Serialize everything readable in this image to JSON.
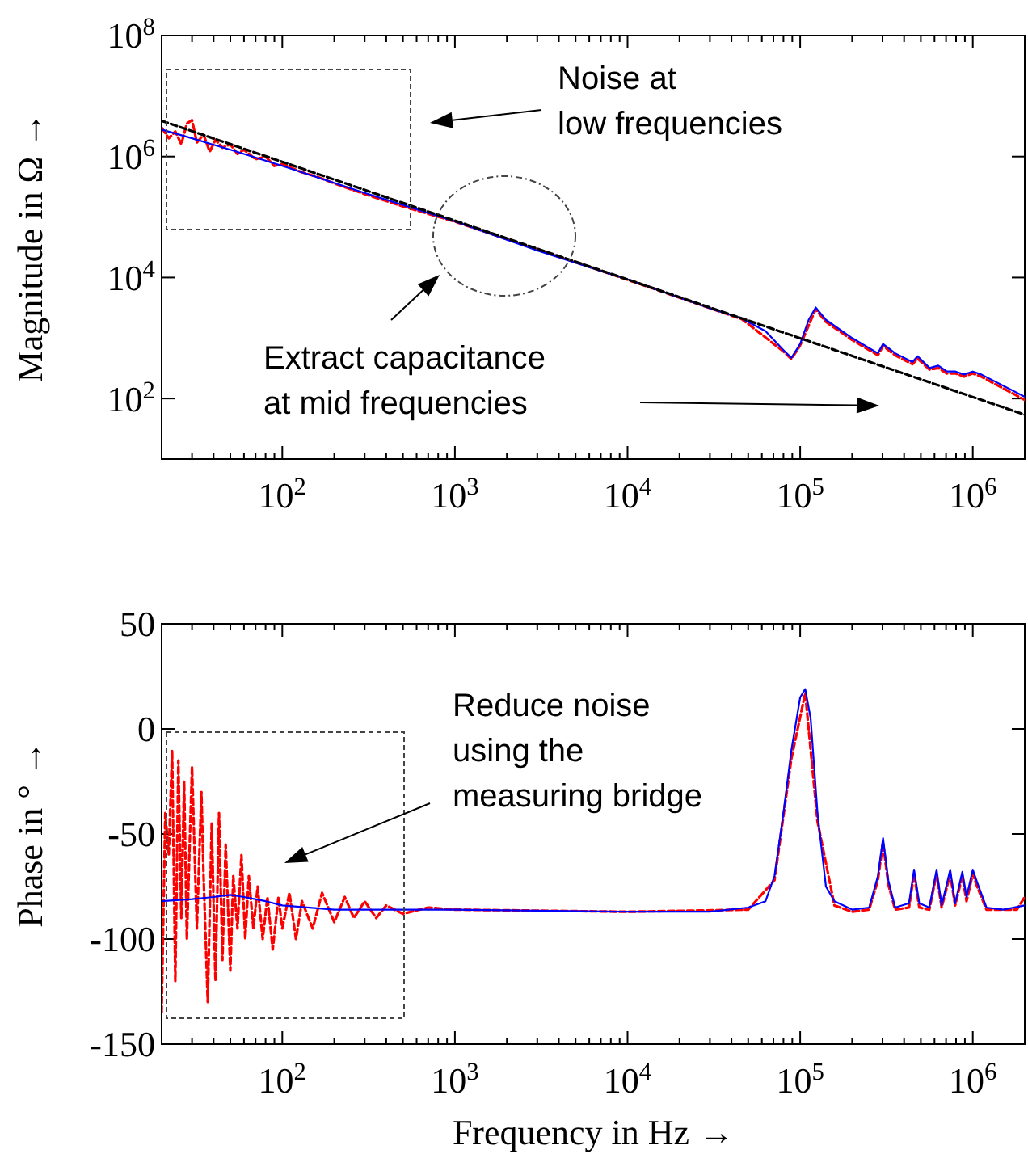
{
  "chart_data": [
    {
      "type": "line",
      "log": "xy",
      "ylabel": "Magnitude in Ω →",
      "xlim": [
        20,
        2000000
      ],
      "ylim": [
        10,
        100000000
      ],
      "xticks": [
        {
          "value": 100,
          "label": "10$^{2}$"
        },
        {
          "value": 1000,
          "label": "10$^{3}$"
        },
        {
          "value": 10000,
          "label": "10$^{4}$"
        },
        {
          "value": 100000,
          "label": "10$^{5}$"
        },
        {
          "value": 1000000,
          "label": "10$^{6}$"
        }
      ],
      "yticks": [
        {
          "value": 100,
          "label": "10$^{2}$"
        },
        {
          "value": 10000,
          "label": "10$^{4}$"
        },
        {
          "value": 1000000,
          "label": "10$^{6}$"
        },
        {
          "value": 100000000,
          "label": "10$^{8}$"
        }
      ],
      "annotations": [
        "Noise at\nlow frequencies",
        "Extract capacitance\nat mid frequencies"
      ],
      "series": [
        {
          "color": "#ff0000",
          "line_style": "dashed",
          "x": [
            20,
            22,
            24,
            26,
            28,
            30,
            32,
            35,
            38,
            41,
            45,
            50,
            55,
            60,
            70,
            80,
            90,
            100,
            130,
            160,
            200,
            300,
            500,
            1000,
            10000,
            46000,
            80000,
            89000,
            100000,
            123000,
            141000,
            200000,
            282000,
            302000,
            355000,
            447000,
            479000,
            562000,
            631000,
            708000,
            794000,
            891000,
            1000000,
            1120000,
            2000000
          ],
          "values": [
            3000000,
            2000000,
            2600000,
            1600000,
            3500000,
            4000000,
            1700000,
            2300000,
            1200000,
            1900000,
            1400000,
            1600000,
            1100000,
            1300000,
            900000,
            1000000,
            700000,
            750000,
            550000,
            460000,
            360000,
            240000,
            150000,
            84000,
            9200,
            2050,
            600,
            450,
            760,
            3000,
            1850,
            930,
            520,
            740,
            520,
            370,
            460,
            300,
            320,
            260,
            260,
            230,
            260,
            230,
            95
          ]
        },
        {
          "color": "#0000ff",
          "line_style": "solid",
          "x": [
            20,
            30,
            50,
            100,
            300,
            1000,
            3000,
            10000,
            30000,
            46000,
            63000,
            80000,
            89000,
            100000,
            112000,
            123000,
            141000,
            200000,
            282000,
            302000,
            355000,
            447000,
            479000,
            562000,
            631000,
            708000,
            794000,
            891000,
            1000000,
            1120000,
            2000000
          ],
          "values": [
            2800000,
            2000000,
            1300000,
            700000,
            250000,
            85000,
            28000,
            9300,
            3100,
            2100,
            1300,
            630,
            470,
            800,
            2000,
            3200,
            2000,
            1000,
            560,
            800,
            560,
            400,
            500,
            320,
            350,
            280,
            280,
            250,
            280,
            250,
            107
          ]
        },
        {
          "color": "#000000",
          "line_style": "dashed",
          "x": [
            20,
            2000000
          ],
          "values": [
            3900000,
            54
          ]
        }
      ]
    },
    {
      "type": "line",
      "log": "x",
      "ylabel": "Phase in ° →",
      "xlabel": "Frequency in Hz →",
      "xlim": [
        20,
        2000000
      ],
      "ylim": [
        -150,
        50
      ],
      "xticks": [
        {
          "value": 100,
          "label": "10$^{2}$"
        },
        {
          "value": 1000,
          "label": "10$^{3}$"
        },
        {
          "value": 10000,
          "label": "10$^{4}$"
        },
        {
          "value": 100000,
          "label": "10$^{5}$"
        },
        {
          "value": 1000000,
          "label": "10$^{6}$"
        }
      ],
      "yticks": [
        -150,
        -100,
        -50,
        0,
        50
      ],
      "annotations": [
        "Reduce noise\nusing the\nmeasuring bridge"
      ],
      "series": [
        {
          "color": "#ff0000",
          "line_style": "dashed",
          "x": [
            20,
            21,
            22,
            23,
            24,
            25,
            26,
            27,
            28,
            30,
            32,
            34,
            35,
            37,
            39,
            41,
            43,
            45,
            47,
            50,
            52,
            55,
            58,
            61,
            64,
            68,
            72,
            77,
            82,
            88,
            95,
            100,
            110,
            120,
            130,
            150,
            170,
            200,
            230,
            260,
            300,
            350,
            400,
            500,
            700,
            1000,
            10000,
            50000,
            71000,
            89000,
            107000,
            126000,
            158000,
            200000,
            251000,
            282000,
            302000,
            324000,
            355000,
            427000,
            457000,
            490000,
            560000,
            617000,
            660000,
            740000,
            790000,
            870000,
            920000,
            1000000,
            1060000,
            1200000,
            1800000,
            2000000
          ],
          "values": [
            -135,
            -40,
            -60,
            -10,
            -120,
            -15,
            -90,
            -25,
            -100,
            -18,
            -95,
            -30,
            -70,
            -130,
            -45,
            -120,
            -40,
            -110,
            -55,
            -115,
            -70,
            -95,
            -60,
            -100,
            -70,
            -95,
            -75,
            -100,
            -80,
            -105,
            -80,
            -95,
            -78,
            -100,
            -82,
            -95,
            -78,
            -92,
            -80,
            -90,
            -82,
            -90,
            -84,
            -88,
            -85,
            -86,
            -87,
            -86,
            -72,
            -14,
            17,
            -44,
            -84,
            -87,
            -86,
            -72,
            -54,
            -74,
            -86,
            -85,
            -69,
            -85,
            -86,
            -69,
            -85,
            -69,
            -84,
            -70,
            -82,
            -69,
            -75,
            -86,
            -86,
            -80
          ]
        },
        {
          "color": "#0000ff",
          "line_style": "solid",
          "x": [
            20,
            30,
            40,
            50,
            60,
            80,
            100,
            200,
            1000,
            10000,
            30000,
            50000,
            63000,
            71000,
            80000,
            89000,
            100000,
            107000,
            115000,
            126000,
            141000,
            158000,
            200000,
            251000,
            282000,
            302000,
            324000,
            355000,
            427000,
            457000,
            490000,
            560000,
            617000,
            660000,
            740000,
            790000,
            870000,
            920000,
            1000000,
            1060000,
            1200000,
            1500000,
            2000000
          ],
          "values": [
            -82,
            -81,
            -80,
            -79,
            -80,
            -82,
            -84,
            -86,
            -86,
            -87,
            -87,
            -85,
            -82,
            -70,
            -40,
            -10,
            15,
            19,
            5,
            -40,
            -75,
            -82,
            -86,
            -85,
            -70,
            -52,
            -72,
            -85,
            -83,
            -67,
            -83,
            -85,
            -67,
            -84,
            -67,
            -83,
            -68,
            -80,
            -67,
            -73,
            -85,
            -86,
            -84
          ]
        }
      ]
    }
  ]
}
